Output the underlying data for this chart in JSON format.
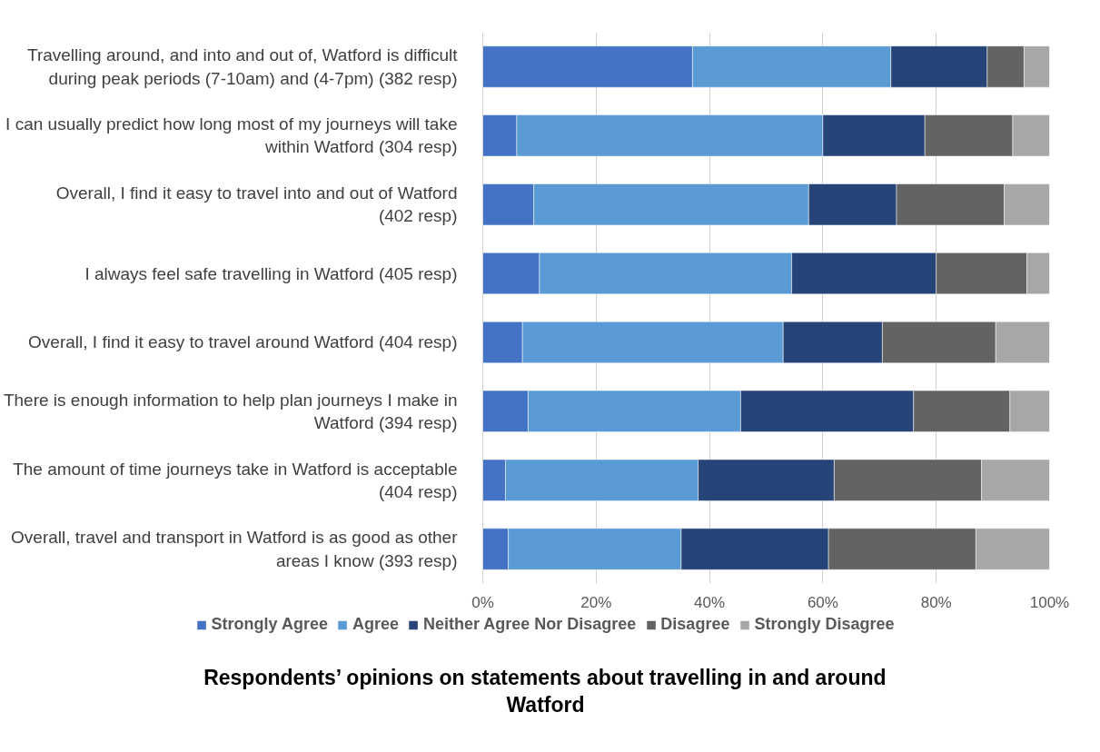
{
  "chart_data": {
    "type": "bar",
    "orientation": "horizontal",
    "stacked": true,
    "title": "Respondents’ opinions on statements about travelling in and around Watford",
    "categories": [
      "Travelling around, and into and out of, Watford is difficult during peak periods (7-10am) and (4-7pm) (382 resp)",
      "I can usually predict how long most of my journeys will take within Watford (304 resp)",
      "Overall, I find it easy to travel into and out of Watford (402 resp)",
      "I always feel safe travelling in Watford (405 resp)",
      "Overall, I find it easy to travel around Watford (404 resp)",
      "There is enough information to help plan journeys I make in Watford (394 resp)",
      "The amount of time journeys take in Watford is acceptable (404 resp)",
      "Overall, travel and transport in Watford is as good as other areas I know (393 resp)"
    ],
    "series": [
      {
        "name": "Strongly Agree",
        "color": "#4472c4",
        "values": [
          37,
          6,
          9,
          10,
          7,
          8,
          4,
          4.5
        ]
      },
      {
        "name": "Agree",
        "color": "#5b9bd5",
        "values": [
          35,
          54,
          48.5,
          44.5,
          46,
          37.5,
          34,
          30.5
        ]
      },
      {
        "name": "Neither Agree Nor Disagree",
        "color": "#264478",
        "values": [
          17,
          18,
          15.5,
          25.5,
          17.5,
          30.5,
          24,
          26
        ]
      },
      {
        "name": "Disagree",
        "color": "#636363",
        "values": [
          6.5,
          15.5,
          19,
          16,
          20,
          17,
          26,
          26
        ]
      },
      {
        "name": "Strongly Disagree",
        "color": "#a9a6a6",
        "values": [
          4.5,
          6.5,
          8,
          4,
          9.5,
          7,
          12,
          13
        ]
      }
    ],
    "xlim": [
      0,
      100
    ],
    "xticks": [
      {
        "value": 0,
        "label": "0%"
      },
      {
        "value": 20,
        "label": "20%"
      },
      {
        "value": 40,
        "label": "40%"
      },
      {
        "value": 60,
        "label": "60%"
      },
      {
        "value": 80,
        "label": "80%"
      },
      {
        "value": 100,
        "label": "100%"
      }
    ],
    "grid": "x",
    "legend": "bottom"
  }
}
